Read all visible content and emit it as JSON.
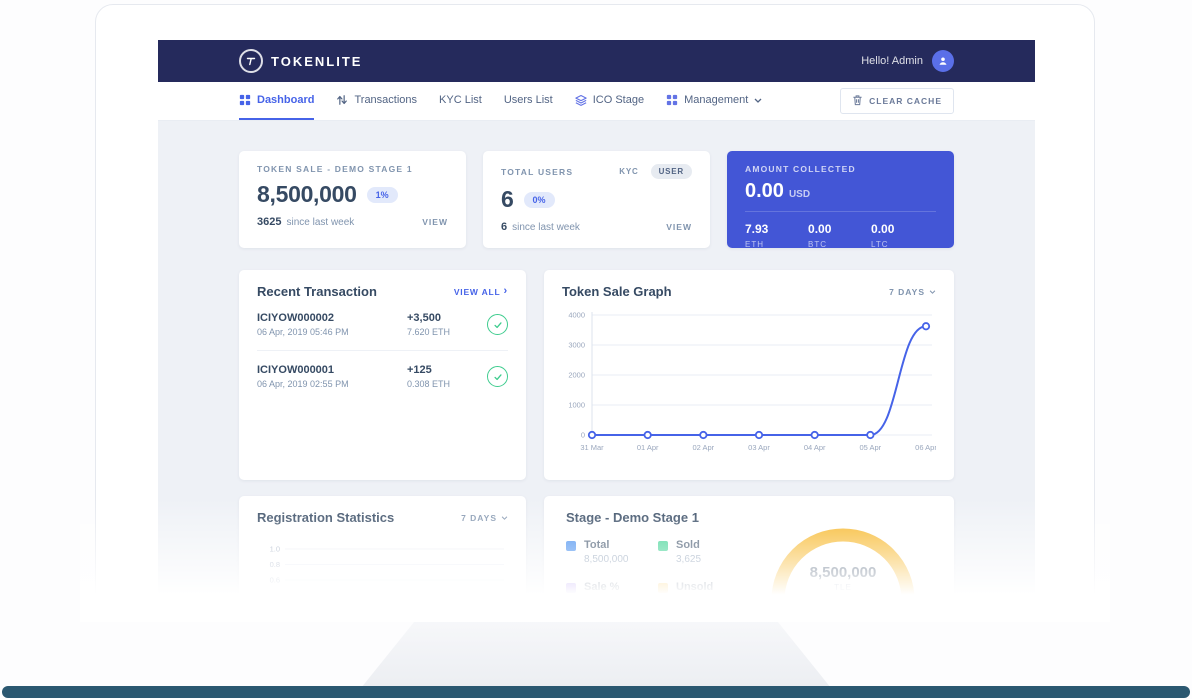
{
  "brand": {
    "name": "TOKENLITE",
    "greeting": "Hello! Admin"
  },
  "nav": {
    "items": [
      {
        "label": "Dashboard"
      },
      {
        "label": "Transactions"
      },
      {
        "label": "KYC List"
      },
      {
        "label": "Users List"
      },
      {
        "label": "ICO Stage"
      },
      {
        "label": "Management"
      }
    ],
    "clear_cache": "CLEAR CACHE"
  },
  "stats": {
    "token_sale": {
      "title": "TOKEN SALE - DEMO STAGE 1",
      "value": "8,500,000",
      "badge": "1%",
      "delta": "3625",
      "delta_suffix": "since last week",
      "view": "VIEW"
    },
    "total_users": {
      "title": "TOTAL USERS",
      "tabs": [
        "KYC",
        "USER"
      ],
      "value": "6",
      "badge": "0%",
      "delta": "6",
      "delta_suffix": "since last week",
      "view": "VIEW"
    },
    "amount_collected": {
      "title": "AMOUNT COLLECTED",
      "usd_value": "0.00",
      "usd_label": "USD",
      "coins": [
        {
          "value": "7.93",
          "label": "ETH"
        },
        {
          "value": "0.00",
          "label": "BTC"
        },
        {
          "value": "0.00",
          "label": "LTC"
        }
      ]
    }
  },
  "recent": {
    "title": "Recent Transaction",
    "view_all": "VIEW ALL",
    "items": [
      {
        "tx_id": "ICIYOW000002",
        "date": "06 Apr, 2019 05:46 PM",
        "amount": "+3,500",
        "eth": "7.620 ETH",
        "status": "confirmed"
      },
      {
        "tx_id": "ICIYOW000001",
        "date": "06 Apr, 2019 02:55 PM",
        "amount": "+125",
        "eth": "0.308 ETH",
        "status": "confirmed"
      }
    ]
  },
  "graph": {
    "title": "Token Sale Graph",
    "range": "7 DAYS"
  },
  "regstats": {
    "title": "Registration Statistics",
    "range": "7 DAYS"
  },
  "stage": {
    "title": "Stage - Demo Stage 1",
    "legend": [
      {
        "label": "Total",
        "value": "8,500,000",
        "color": "#2f80ed"
      },
      {
        "label": "Sold",
        "value": "3,625",
        "color": "#2dce89"
      },
      {
        "label": "Sale %",
        "value": "",
        "color": "#8862f0"
      },
      {
        "label": "Unsold",
        "value": "",
        "color": "#f6b21b"
      }
    ],
    "gauge_value": "8,500,000",
    "gauge_unit": "TLE"
  },
  "colors": {
    "accent": "#4663e8",
    "topbar": "#252a5c",
    "amount_card": "#4356d6",
    "success": "#3ecc8e",
    "unsold_yellow": "#f6b21b"
  },
  "chart_data": [
    {
      "type": "line",
      "title": "Token Sale Graph",
      "x": [
        "31 Mar",
        "01 Apr",
        "02 Apr",
        "03 Apr",
        "04 Apr",
        "05 Apr",
        "06 Apr"
      ],
      "values": [
        0,
        0,
        0,
        0,
        0,
        0,
        3625
      ],
      "ylim": [
        0,
        4000
      ],
      "yticks": [
        0,
        1000,
        2000,
        3000,
        4000
      ],
      "line_color": "#4663e8",
      "grid": true,
      "legend": "none"
    },
    {
      "type": "line",
      "title": "Registration Statistics",
      "yticks_visible": [
        1.0,
        0.8,
        0.6
      ],
      "x": [],
      "values": []
    },
    {
      "type": "gauge",
      "title": "Stage - Demo Stage 1",
      "value": 8500000,
      "unit": "TLE",
      "segments": [
        {
          "label": "Unsold",
          "color": "#f6b21b",
          "fraction": 1
        }
      ]
    }
  ]
}
